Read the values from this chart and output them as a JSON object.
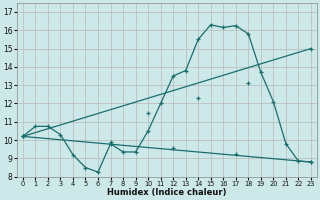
{
  "xlabel": "Humidex (Indice chaleur)",
  "bg_color": "#cce8e8",
  "grid_color": "#b8b8b8",
  "line_color": "#1a6e6e",
  "xlim": [
    -0.5,
    23.5
  ],
  "ylim": [
    8,
    17.5
  ],
  "xticks": [
    0,
    1,
    2,
    3,
    4,
    5,
    6,
    7,
    8,
    9,
    10,
    11,
    12,
    13,
    14,
    15,
    16,
    17,
    18,
    19,
    20,
    21,
    22,
    23
  ],
  "yticks": [
    8,
    9,
    10,
    11,
    12,
    13,
    14,
    15,
    16,
    17
  ],
  "line1_x": [
    0,
    1,
    2,
    3,
    4,
    5,
    6,
    7,
    8,
    9,
    10,
    11,
    12,
    13,
    14,
    15,
    16,
    17,
    18,
    19,
    20,
    21,
    22,
    23
  ],
  "line1_y": [
    10.2,
    10.75,
    10.75,
    10.3,
    9.2,
    8.5,
    8.25,
    9.8,
    9.35,
    9.35,
    10.5,
    12.0,
    13.5,
    13.8,
    15.5,
    16.3,
    16.15,
    16.25,
    15.8,
    13.7,
    12.1,
    9.8,
    8.85,
    8.8
  ],
  "line2_x": [
    0,
    23
  ],
  "line2_y": [
    10.2,
    15.0
  ],
  "line2_markers_x": [
    0,
    10,
    14,
    18,
    23
  ],
  "line2_markers_y": [
    10.2,
    11.5,
    12.3,
    13.1,
    15.0
  ],
  "line3_x": [
    0,
    23
  ],
  "line3_y": [
    10.2,
    8.8
  ],
  "line3_markers_x": [
    0,
    7,
    12,
    17,
    23
  ],
  "line3_markers_y": [
    10.2,
    9.9,
    9.55,
    9.25,
    8.8
  ]
}
